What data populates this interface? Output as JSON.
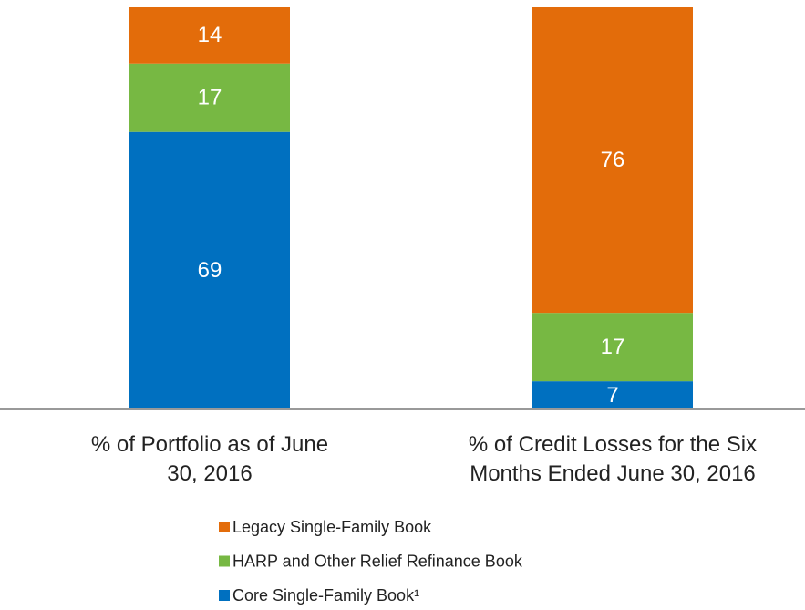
{
  "chart_data": {
    "type": "stacked_bar",
    "categories": [
      "% of Portfolio as of June 30, 2016",
      "% of Credit Losses for the Six Months Ended June 30, 2016"
    ],
    "series": [
      {
        "name": "Core Single-Family Book¹",
        "color": "#0070c0",
        "values": [
          69,
          7
        ]
      },
      {
        "name": "HARP and Other Relief Refinance Book",
        "color": "#77b843",
        "values": [
          17,
          17
        ]
      },
      {
        "name": "Legacy Single-Family Book",
        "color": "#e36c0a",
        "values": [
          14,
          76
        ]
      }
    ],
    "ylim": [
      0,
      100
    ]
  }
}
